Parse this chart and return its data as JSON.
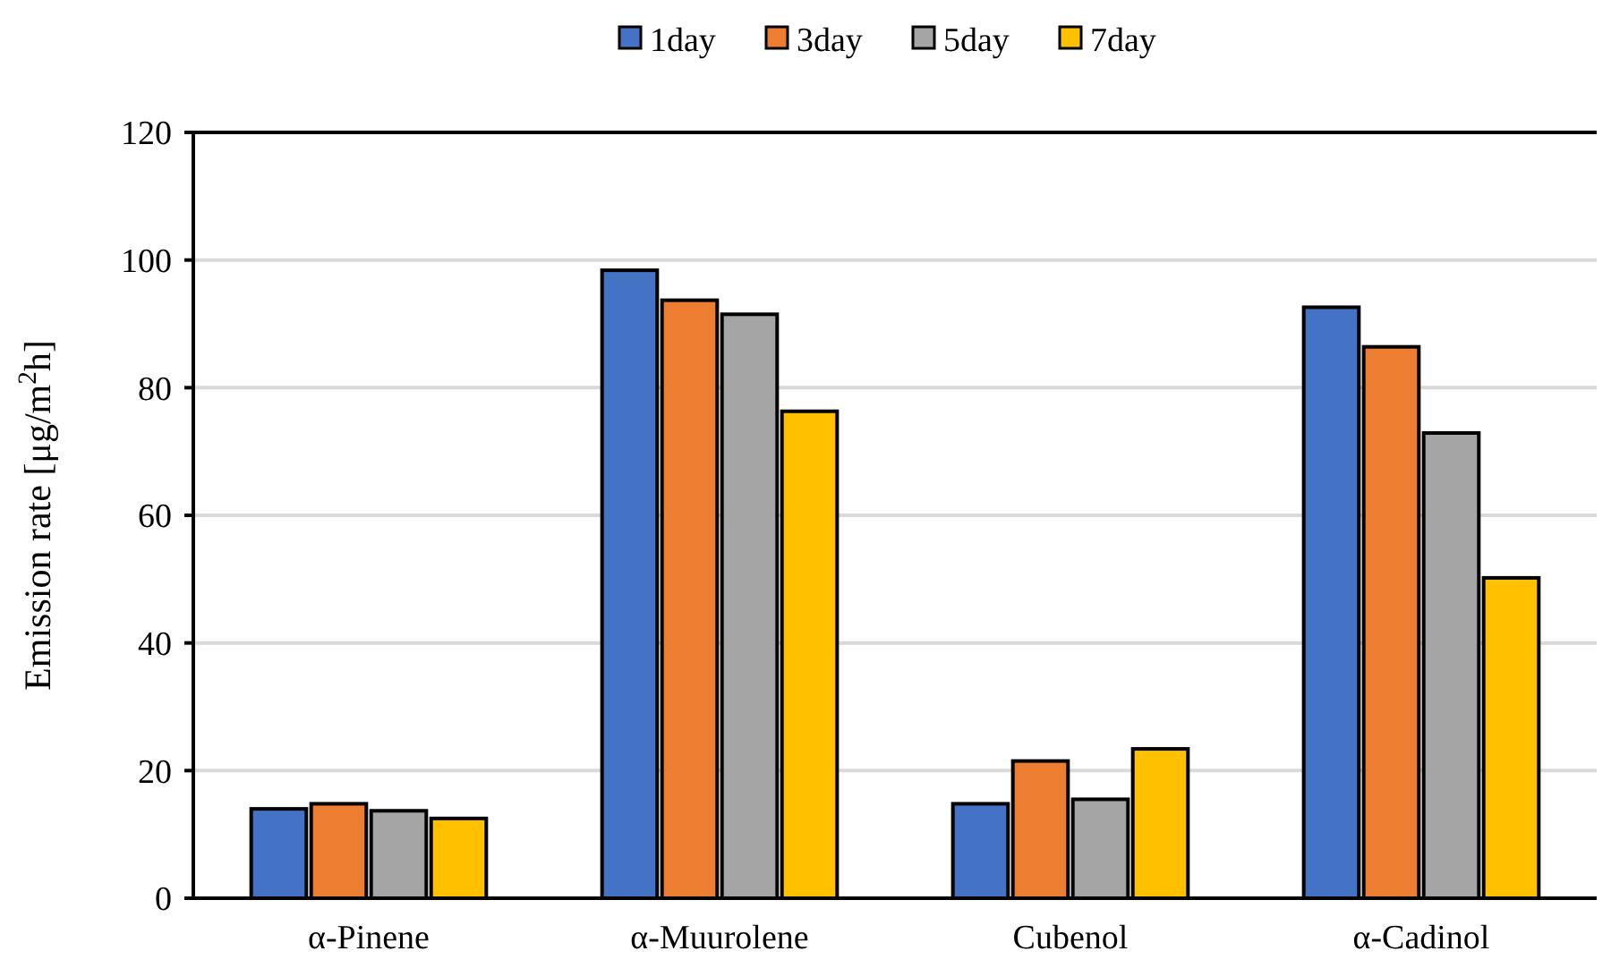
{
  "chart_data": {
    "type": "bar",
    "ylabel": "Emission rate [μg/m$^{2}$h]",
    "categories": [
      "α-Pinene",
      "α-Muurolene",
      "Cubenol",
      "α-Cadinol"
    ],
    "series": [
      {
        "name": "1day",
        "color": "#4472c4",
        "values": [
          14.0,
          98.4,
          14.8,
          92.6
        ]
      },
      {
        "name": "3day",
        "color": "#ed7d31",
        "values": [
          14.8,
          93.7,
          21.5,
          86.4
        ]
      },
      {
        "name": "5day",
        "color": "#a5a5a5",
        "values": [
          13.7,
          91.5,
          15.5,
          72.9
        ]
      },
      {
        "name": "7day",
        "color": "#ffc000",
        "values": [
          12.5,
          76.3,
          23.4,
          50.2
        ]
      }
    ],
    "ylim": [
      0,
      120
    ],
    "yticks": [
      0,
      20,
      40,
      60,
      80,
      100,
      120
    ],
    "grid": "y",
    "legend": "top"
  }
}
